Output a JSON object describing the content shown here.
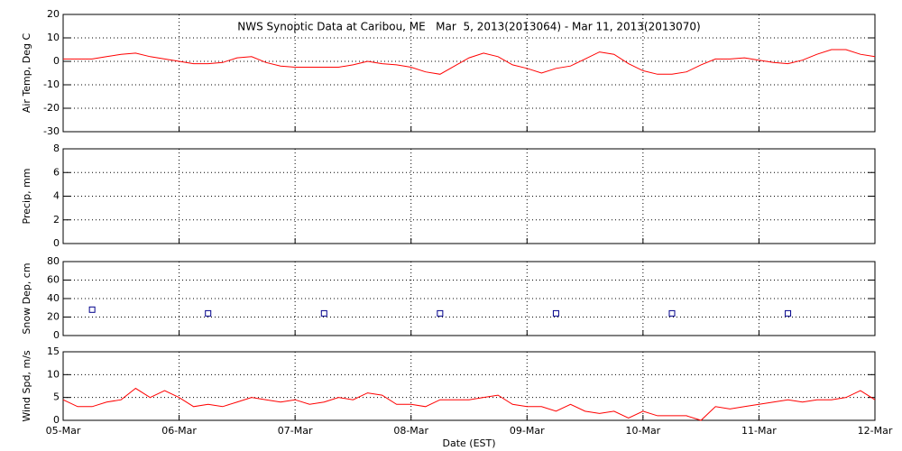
{
  "chart_data": [
    {
      "type": "line",
      "title": "NWS Synoptic Data at Caribou, ME   Mar  5, 2013(2013064) - Mar 11, 2013(2013070)",
      "ylabel": "Air Temp, Deg C",
      "x": [
        0,
        3,
        6,
        9,
        12,
        15,
        18,
        21,
        24,
        27,
        30,
        33,
        36,
        39,
        42,
        45,
        48,
        51,
        54,
        57,
        60,
        63,
        66,
        69,
        72,
        75,
        78,
        81,
        84,
        87,
        90,
        93,
        96,
        99,
        102,
        105,
        108,
        111,
        114,
        117,
        120,
        123,
        126,
        129,
        132,
        135,
        138,
        141,
        144,
        147,
        150,
        153,
        156,
        159,
        162,
        165,
        168
      ],
      "series": [
        {
          "color": "#ff0000",
          "values": [
            1,
            1,
            1,
            2,
            3,
            3.5,
            2,
            1,
            0,
            -1,
            -1,
            -0.5,
            1.5,
            2,
            -0.5,
            -2,
            -2.5,
            -2.5,
            -2.5,
            -2.5,
            -1.5,
            0,
            -1,
            -1.5,
            -2.5,
            -4.5,
            -5.5,
            -2,
            1.5,
            3.5,
            2,
            -1.5,
            -3,
            -5,
            -3,
            -2,
            1,
            4,
            3,
            -1,
            -4,
            -5.5,
            -5.5,
            -4.5,
            -1.5,
            1,
            1,
            1.5,
            0.5,
            -0.5,
            -1,
            0.5,
            3,
            5,
            5,
            3,
            2
          ]
        }
      ],
      "xlim": [
        0,
        168
      ],
      "xticks": [
        0,
        24,
        48,
        72,
        96,
        120,
        144,
        168
      ],
      "ylim": [
        -30,
        20
      ],
      "yticks": [
        -30,
        -20,
        -10,
        0,
        10,
        20
      ],
      "grid": true
    },
    {
      "type": "line",
      "ylabel": "Precip, mm",
      "xlim": [
        0,
        168
      ],
      "xticks": [
        0,
        24,
        48,
        72,
        96,
        120,
        144,
        168
      ],
      "ylim": [
        0,
        8
      ],
      "yticks": [
        0,
        2,
        4,
        6,
        8
      ],
      "grid": true
    },
    {
      "type": "scatter",
      "ylabel": "Snow Dep, cm",
      "x": [
        6,
        30,
        54,
        78,
        102,
        126,
        150
      ],
      "series": [
        {
          "color": "#00008b",
          "values": [
            28,
            24,
            24,
            24,
            24,
            24,
            24
          ]
        }
      ],
      "xlim": [
        0,
        168
      ],
      "xticks": [
        0,
        24,
        48,
        72,
        96,
        120,
        144,
        168
      ],
      "ylim": [
        0,
        80
      ],
      "yticks": [
        0,
        20,
        40,
        60,
        80
      ],
      "grid": true
    },
    {
      "type": "line",
      "ylabel": "Wind Spd, m/s",
      "xlabel": "Date (EST)",
      "x": [
        0,
        3,
        6,
        9,
        12,
        15,
        18,
        21,
        24,
        27,
        30,
        33,
        36,
        39,
        42,
        45,
        48,
        51,
        54,
        57,
        60,
        63,
        66,
        69,
        72,
        75,
        78,
        81,
        84,
        87,
        90,
        93,
        96,
        99,
        102,
        105,
        108,
        111,
        114,
        117,
        120,
        123,
        126,
        129,
        132,
        135,
        138,
        141,
        144,
        147,
        150,
        153,
        156,
        159,
        162,
        165,
        168
      ],
      "series": [
        {
          "color": "#ff0000",
          "values": [
            4.5,
            3,
            3,
            4,
            4.5,
            7,
            5,
            6.5,
            5,
            3,
            3.5,
            3,
            4,
            5,
            4.5,
            4,
            4.5,
            3.5,
            4,
            5,
            4.5,
            6,
            5.5,
            3.5,
            3.5,
            3,
            4.5,
            4.5,
            4.5,
            5,
            5.5,
            3.5,
            3,
            3,
            2,
            3.5,
            2,
            1.5,
            2,
            0.5,
            2,
            1,
            1,
            1,
            0,
            3,
            2.5,
            3,
            3.5,
            4,
            4.5,
            4,
            4.5,
            4.5,
            5,
            6.5,
            4.5
          ]
        }
      ],
      "xlim": [
        0,
        168
      ],
      "xticks": [
        {
          "value": 0,
          "label": "05-Mar"
        },
        {
          "value": 24,
          "label": "06-Mar"
        },
        {
          "value": 48,
          "label": "07-Mar"
        },
        {
          "value": 72,
          "label": "08-Mar"
        },
        {
          "value": 96,
          "label": "09-Mar"
        },
        {
          "value": 120,
          "label": "10-Mar"
        },
        {
          "value": 144,
          "label": "11-Mar"
        },
        {
          "value": 168,
          "label": "12-Mar"
        }
      ],
      "ylim": [
        0,
        15
      ],
      "yticks": [
        0,
        5,
        10,
        15
      ],
      "grid": true
    }
  ]
}
